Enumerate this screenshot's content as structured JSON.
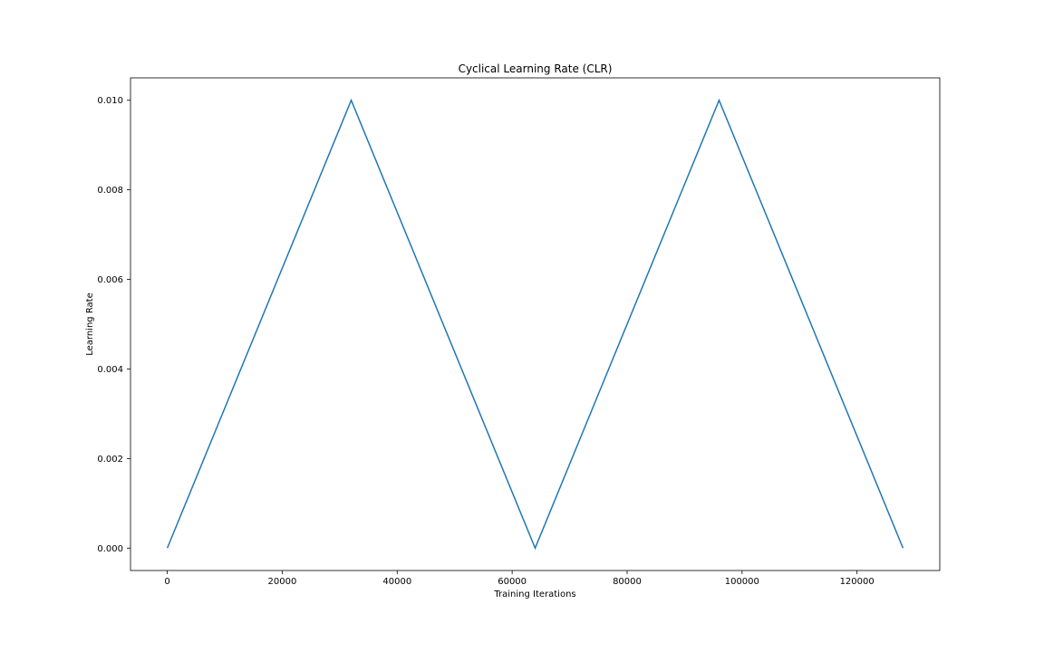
{
  "chart_data": {
    "type": "line",
    "title": "Cyclical Learning Rate (CLR)",
    "xlabel": "Training Iterations",
    "ylabel": "Learning Rate",
    "xlim": [
      -6400,
      134400
    ],
    "ylim": [
      -0.0005,
      0.0105
    ],
    "x_ticks": [
      0,
      20000,
      40000,
      60000,
      80000,
      100000,
      120000
    ],
    "x_tick_labels": [
      "0",
      "20000",
      "40000",
      "60000",
      "80000",
      "100000",
      "120000"
    ],
    "y_ticks": [
      0.0,
      0.002,
      0.004,
      0.006,
      0.008,
      0.01
    ],
    "y_tick_labels": [
      "0.000",
      "0.002",
      "0.004",
      "0.006",
      "0.008",
      "0.010"
    ],
    "grid": false,
    "series": [
      {
        "color": "#1f77b4",
        "x": [
          0,
          32000,
          64000,
          96000,
          128000
        ],
        "y": [
          0.0,
          0.01,
          0.0,
          0.01,
          0.0
        ]
      }
    ]
  }
}
